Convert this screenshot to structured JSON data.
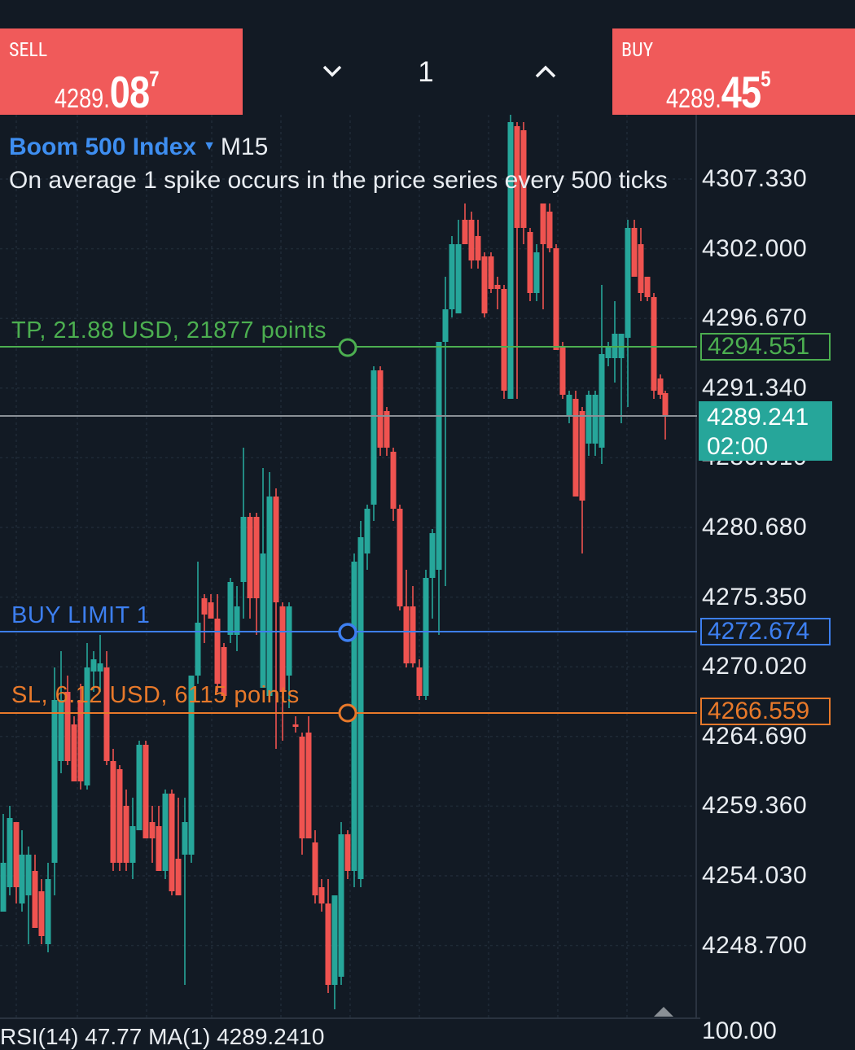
{
  "sell": {
    "label": "SELL",
    "price_small": "4289.",
    "price_big": "08",
    "price_sup": "7"
  },
  "buy": {
    "label": "BUY",
    "price_small": "4289.",
    "price_big": "45",
    "price_sup": "5"
  },
  "volume": {
    "value": "1",
    "down_icon": "chevron-down-icon",
    "up_icon": "chevron-up-icon"
  },
  "chart": {
    "symbol": "Boom 500 Index",
    "timeframe": "M15",
    "description": "On average 1 spike occurs in the price series every 500 ticks",
    "price_axis": [
      "4307.330",
      "4302.000",
      "4296.670",
      "4291.340",
      "4286.010",
      "4280.680",
      "4275.350",
      "4270.020",
      "4264.690",
      "4259.360",
      "4254.030",
      "4248.700"
    ],
    "tp": {
      "label": "TP, 21.88 USD, 21877 points",
      "price": "4294.551",
      "color": "#4caf50"
    },
    "buy_limit": {
      "label": "BUY LIMIT 1",
      "price": "4272.674",
      "color": "#3d7ff0"
    },
    "sl": {
      "label": "SL, 6.12 USD, 6115 points",
      "price": "4266.559",
      "color": "#e8792a"
    },
    "current": {
      "price": "4289.241",
      "countdown": "02:00",
      "color": "#26a69a"
    },
    "up_color": "#26a69a",
    "down_color": "#ef5350"
  },
  "rsi": {
    "text": "RSI(14) 47.77 MA(1) 4289.2410",
    "axis_max": "100.00"
  }
}
